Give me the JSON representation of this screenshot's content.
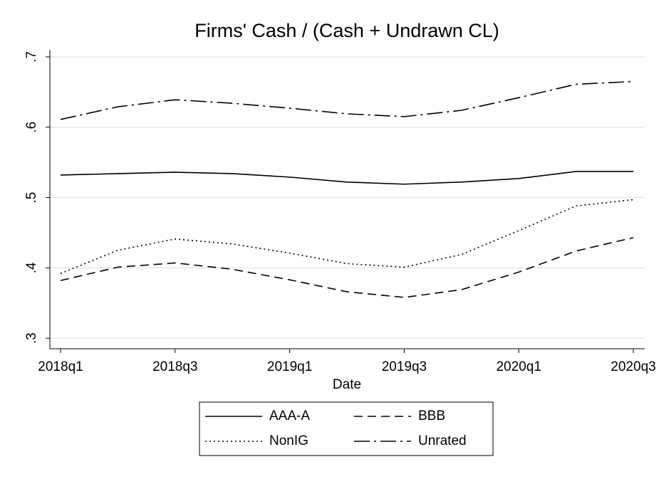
{
  "chart_data": {
    "type": "line",
    "title": "Firms' Cash / (Cash + Undrawn CL)",
    "x_label": "Date",
    "categories": [
      "2018q1",
      null,
      "2018q3",
      null,
      "2019q1",
      null,
      "2019q3",
      null,
      "2020q1",
      null,
      "2020q3"
    ],
    "series": [
      {
        "name": "AAA-A",
        "color": "#000000",
        "dash": "solid",
        "values": [
          0.532,
          0.534,
          0.536,
          0.534,
          0.529,
          0.522,
          0.519,
          0.522,
          0.527,
          0.537,
          0.537
        ]
      },
      {
        "name": "BBB",
        "color": "#000000",
        "dash": "dash",
        "values": [
          0.382,
          0.401,
          0.407,
          0.398,
          0.383,
          0.366,
          0.358,
          0.369,
          0.394,
          0.424,
          0.443
        ]
      },
      {
        "name": "NonIG",
        "color": "#000000",
        "dash": "dot",
        "values": [
          0.392,
          0.425,
          0.441,
          0.434,
          0.421,
          0.406,
          0.401,
          0.419,
          0.453,
          0.488,
          0.497
        ]
      },
      {
        "name": "Unrated",
        "color": "#000000",
        "dash": "longdash-dot",
        "values": [
          0.611,
          0.629,
          0.639,
          0.634,
          0.627,
          0.619,
          0.615,
          0.624,
          0.642,
          0.661,
          0.665
        ]
      }
    ],
    "ylim": [
      0.285,
      0.71
    ],
    "yticks": [
      {
        "value": 0.3,
        "label": ".3"
      },
      {
        "value": 0.4,
        "label": ".4"
      },
      {
        "value": 0.5,
        "label": ".5"
      },
      {
        "value": 0.6,
        "label": ".6"
      },
      {
        "value": 0.7,
        "label": ".7"
      }
    ],
    "grid": true,
    "legend": "bottom"
  }
}
